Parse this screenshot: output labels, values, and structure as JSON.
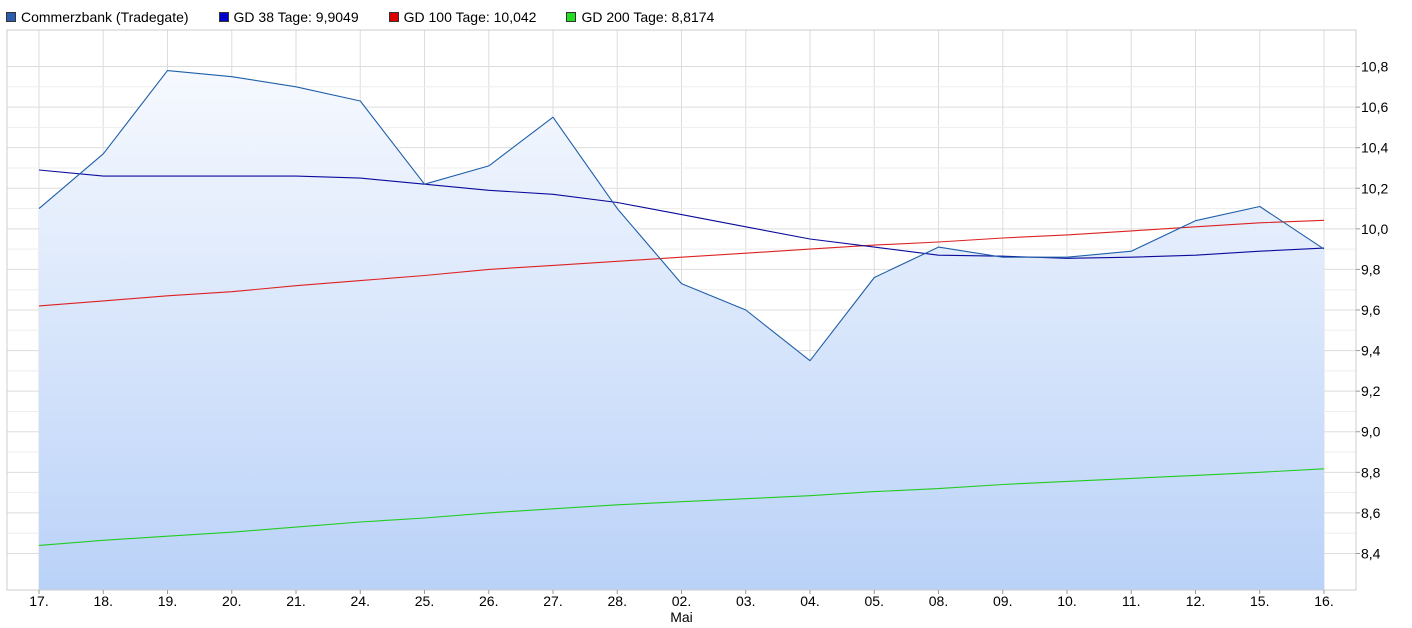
{
  "chart_data": {
    "type": "line",
    "title": "",
    "xlabel": "",
    "ylabel": "",
    "ylim": [
      8.22,
      10.98
    ],
    "yticks": [
      "8,4",
      "8,6",
      "8,8",
      "9,0",
      "9,2",
      "9,4",
      "9,6",
      "9,8",
      "10,0",
      "10,2",
      "10,4",
      "10,6",
      "10,8"
    ],
    "ytick_values": [
      8.4,
      8.6,
      8.8,
      9.0,
      9.2,
      9.4,
      9.6,
      9.8,
      10.0,
      10.2,
      10.4,
      10.6,
      10.8
    ],
    "categories": [
      "17.",
      "18.",
      "19.",
      "20.",
      "21.",
      "24.",
      "25.",
      "26.",
      "27.",
      "28.",
      "02.",
      "03.",
      "04.",
      "05.",
      "08.",
      "09.",
      "10.",
      "11.",
      "12.",
      "15.",
      "16."
    ],
    "month_label": "Mai",
    "month_label_at": "02.",
    "grid": true,
    "legend_position": "top-left",
    "series": [
      {
        "name": "Commerzbank (Tradegate)",
        "color": "#1f5fa8",
        "swatch_color": "#2a5db0",
        "fill": "area-gradient",
        "values": [
          10.1,
          10.37,
          10.78,
          10.75,
          10.7,
          10.63,
          10.22,
          10.31,
          10.55,
          10.1,
          9.73,
          9.6,
          9.35,
          9.76,
          9.91,
          9.86,
          9.86,
          9.89,
          10.04,
          10.11,
          9.9
        ]
      },
      {
        "name": "GD 38 Tage: 9,9049",
        "color": "#0a0a9c",
        "swatch_color": "#0000cc",
        "values": [
          10.29,
          10.26,
          10.26,
          10.26,
          10.26,
          10.25,
          10.22,
          10.19,
          10.17,
          10.13,
          10.07,
          10.01,
          9.95,
          9.91,
          9.87,
          9.865,
          9.855,
          9.86,
          9.87,
          9.89,
          9.9049
        ]
      },
      {
        "name": "GD 100 Tage: 10,042",
        "color": "#dd2222",
        "swatch_color": "#dd0000",
        "values": [
          9.62,
          9.645,
          9.67,
          9.69,
          9.72,
          9.745,
          9.77,
          9.8,
          9.82,
          9.84,
          9.86,
          9.88,
          9.9,
          9.92,
          9.935,
          9.955,
          9.97,
          9.99,
          10.01,
          10.03,
          10.042
        ]
      },
      {
        "name": "GD 200 Tage: 8,8174",
        "color": "#22cc22",
        "swatch_color": "#22dd22",
        "values": [
          8.44,
          8.465,
          8.485,
          8.505,
          8.53,
          8.555,
          8.575,
          8.6,
          8.62,
          8.64,
          8.655,
          8.67,
          8.685,
          8.705,
          8.72,
          8.74,
          8.755,
          8.77,
          8.785,
          8.8,
          8.8174
        ]
      }
    ]
  }
}
